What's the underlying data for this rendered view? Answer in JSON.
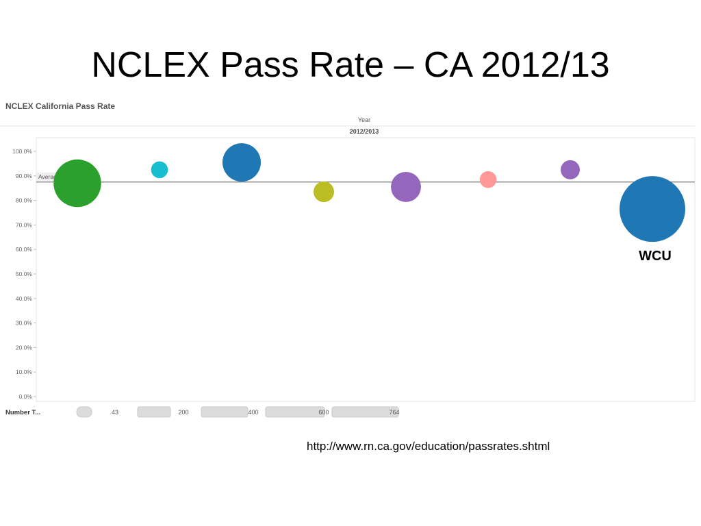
{
  "slide": {
    "title": "NCLEX Pass Rate – CA 2012/13",
    "source": "http://www.rn.ca.gov/education/passrates.shtml"
  },
  "chart_data": {
    "type": "scatter",
    "title": "NCLEX California Pass Rate",
    "column_header_label": "Year",
    "column_header_value": "2012/2013",
    "ylim": [
      0,
      1.075
    ],
    "yticks": [
      "0.0%",
      "10.0%",
      "20.0%",
      "30.0%",
      "40.0%",
      "50.0%",
      "60.0%",
      "70.0%",
      "80.0%",
      "90.0%",
      "100.0%"
    ],
    "reference_line": {
      "label": "Average",
      "value": 0.875
    },
    "points": [
      {
        "value": 0.87,
        "size": 400,
        "color": "#2ca02c"
      },
      {
        "value": 0.925,
        "size": 50,
        "color": "#17becf"
      },
      {
        "value": 0.955,
        "size": 260,
        "color": "#1f77b4"
      },
      {
        "value": 0.835,
        "size": 75,
        "color": "#bcbd22"
      },
      {
        "value": 0.855,
        "size": 160,
        "color": "#9467bd"
      },
      {
        "value": 0.885,
        "size": 50,
        "color": "#ff9896"
      },
      {
        "value": 0.925,
        "size": 65,
        "color": "#9467bd"
      },
      {
        "value": 0.765,
        "size": 764,
        "color": "#1f77b4"
      }
    ],
    "annotation": {
      "text": "WCU",
      "point_index": 7
    },
    "size_legend": {
      "title": "Number T...",
      "labels": [
        "43",
        "200",
        "400",
        "600",
        "764"
      ]
    },
    "grid": false
  }
}
